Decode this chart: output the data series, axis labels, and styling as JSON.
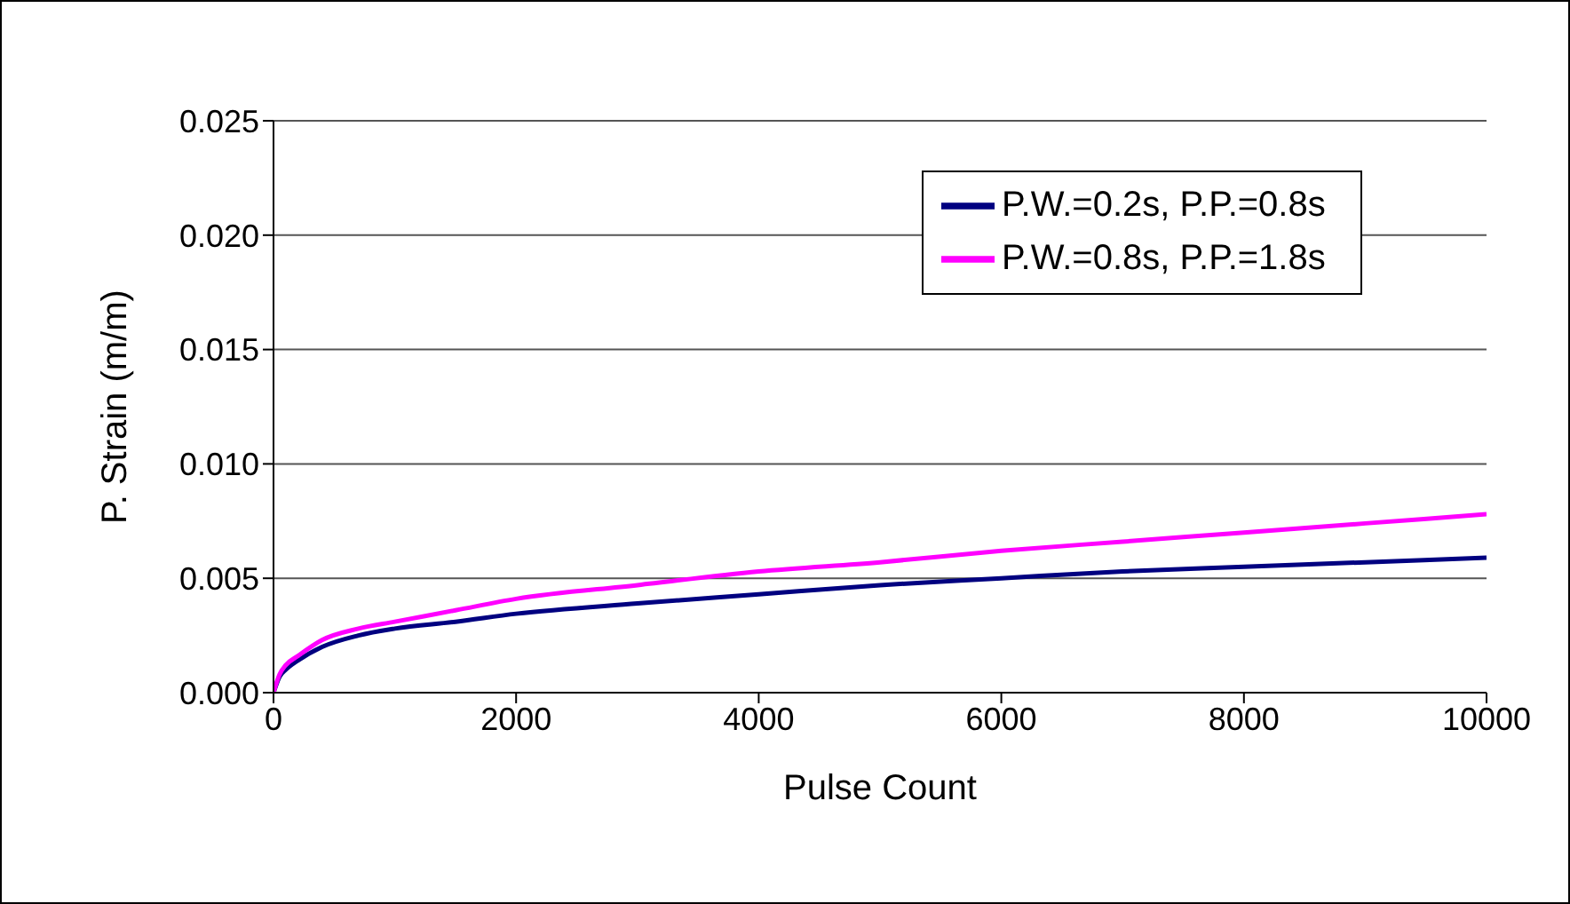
{
  "chart_data": {
    "type": "line",
    "xlabel": "Pulse Count",
    "ylabel": "P. Strain (m/m)",
    "x": [
      0,
      50,
      100,
      200,
      400,
      700,
      1000,
      1500,
      2000,
      3000,
      4000,
      5000,
      6000,
      7000,
      8000,
      9000,
      10000
    ],
    "series": [
      {
        "name": "P.W.=0.2s, P.P.=0.8s",
        "color": "#000080",
        "values": [
          0,
          0.0007,
          0.001,
          0.0014,
          0.002,
          0.0025,
          0.0028,
          0.0031,
          0.00345,
          0.0039,
          0.0043,
          0.0047,
          0.005,
          0.0053,
          0.0055,
          0.0057,
          0.0059
        ]
      },
      {
        "name": "P.W.=0.8s, P.P.=1.8s",
        "color": "#ff00ff",
        "values": [
          0,
          0.0008,
          0.0012,
          0.0016,
          0.0023,
          0.0028,
          0.0031,
          0.0036,
          0.0041,
          0.0047,
          0.0053,
          0.0057,
          0.0062,
          0.0066,
          0.007,
          0.0074,
          0.0078
        ]
      }
    ],
    "xlim": [
      0,
      10000
    ],
    "xticks": [
      0,
      2000,
      4000,
      6000,
      8000,
      10000
    ],
    "ylim": [
      0,
      0.025
    ],
    "yticks": [
      {
        "value": 0,
        "label": "0.000"
      },
      {
        "value": 0.005,
        "label": "0.005"
      },
      {
        "value": 0.01,
        "label": "0.010"
      },
      {
        "value": 0.015,
        "label": "0.015"
      },
      {
        "value": 0.02,
        "label": "0.020"
      },
      {
        "value": 0.025,
        "label": "0.025"
      }
    ],
    "grid": "y",
    "legend": "top right",
    "marker": "none",
    "line_style": "solid"
  }
}
